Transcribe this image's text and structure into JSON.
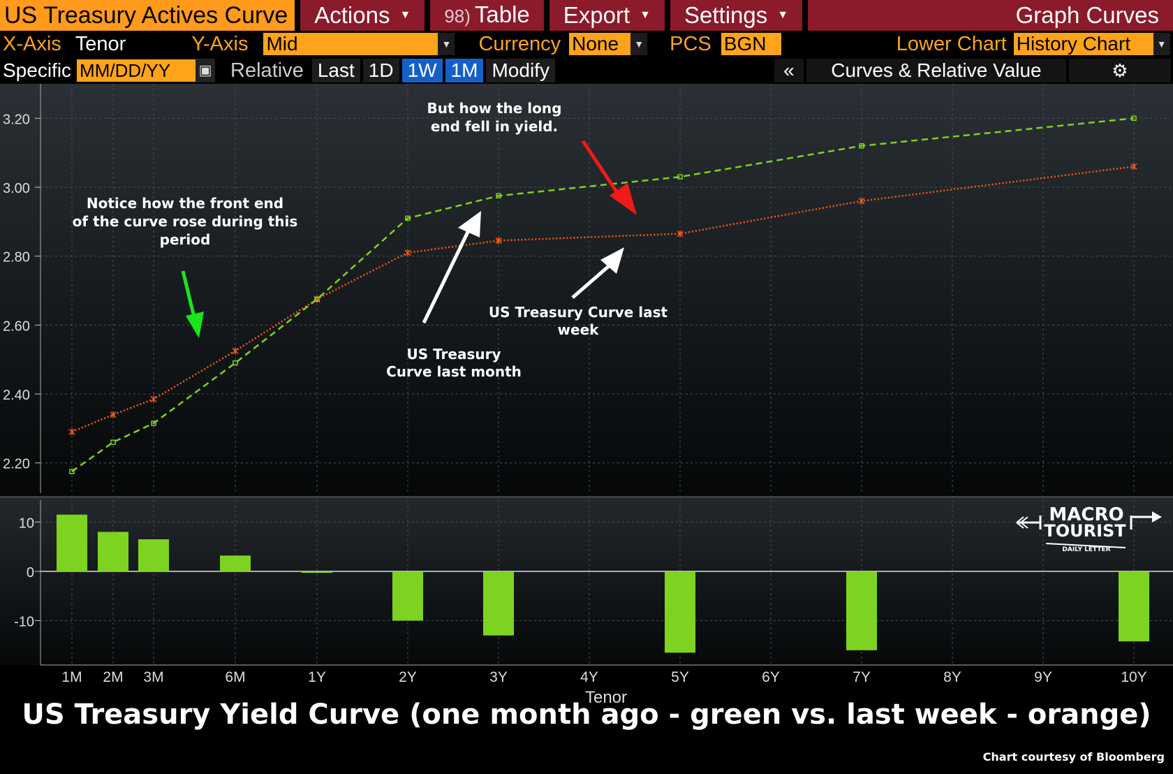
{
  "toolbar": {
    "title": "US Treasury Actives Curve",
    "actions": "Actions",
    "table_num": "98)",
    "table": "Table",
    "export": "Export",
    "settings": "Settings",
    "graph_curves": "Graph Curves"
  },
  "params": {
    "xaxis_label": "X-Axis",
    "xaxis_value": "Tenor",
    "yaxis_label": "Y-Axis",
    "yaxis_value": "Mid",
    "currency_label": "Currency",
    "currency_value": "None",
    "pcs_label": "PCS",
    "pcs_value": "BGN",
    "lower_label": "Lower Chart",
    "lower_value": "History Chart"
  },
  "dates": {
    "specific": "Specific",
    "date_placeholder": "MM/DD/YY",
    "relative": "Relative",
    "last": "Last",
    "d1": "1D",
    "w1": "1W",
    "m1": "1M",
    "modify": "Modify",
    "collapse": "«",
    "panel": "Curves & Relative Value"
  },
  "colors": {
    "green_series": "#7ed321",
    "orange_series": "#ff5a1a",
    "bars": "#7ed321"
  },
  "icons": [
    "dropdown-caret-icon",
    "calendar-icon",
    "gear-icon",
    "chevron-left-icon"
  ],
  "chart_data": [
    {
      "type": "line",
      "xlabel": "Tenor",
      "x_ticks": [
        "1M",
        "2M",
        "3M",
        "6M",
        "1Y",
        "2Y",
        "3Y",
        "4Y",
        "5Y",
        "6Y",
        "7Y",
        "8Y",
        "9Y",
        "10Y"
      ],
      "x_years": [
        0.0833,
        0.1667,
        0.25,
        0.5,
        1,
        2,
        3,
        4,
        5,
        6,
        7,
        8,
        9,
        10
      ],
      "ylim": [
        2.1,
        3.3
      ],
      "y_ticks": [
        "2.20",
        "2.40",
        "2.60",
        "2.80",
        "3.00",
        "3.20"
      ],
      "grid": true,
      "series": [
        {
          "x_years": [
            0.0833,
            0.1667,
            0.25,
            0.5,
            1,
            2,
            3,
            5,
            7,
            10
          ],
          "values": [
            2.29,
            2.34,
            2.385,
            2.525,
            2.675,
            2.81,
            2.845,
            2.865,
            2.96,
            3.06
          ]
        },
        {
          "x_years": [
            0.0833,
            0.1667,
            0.25,
            0.5,
            1,
            2,
            3,
            5,
            7,
            10
          ],
          "values": [
            2.175,
            2.26,
            2.315,
            2.49,
            2.675,
            2.91,
            2.975,
            3.03,
            3.12,
            3.2
          ]
        }
      ],
      "annotations": [
        "Notice how the front end of the curve rose during this period",
        "But how the long end fell in yield.",
        "US Treasury Curve last month",
        "US Treasury Curve last week"
      ]
    },
    {
      "type": "bar",
      "x_years": [
        0.0833,
        0.1667,
        0.25,
        0.5,
        1,
        2,
        3,
        5,
        7,
        10
      ],
      "values": [
        11.5,
        8,
        6.5,
        3.2,
        -0.3,
        -10,
        -13,
        -16.5,
        -16,
        -14.2
      ],
      "ylim": [
        -19,
        15
      ],
      "y_ticks": [
        "10",
        "0",
        "-10"
      ]
    }
  ],
  "caption": "US Treasury Yield Curve (one month ago - green vs. last week - orange)",
  "credit": "Chart courtesy of Bloomberg",
  "logo": {
    "line1": "MACRO",
    "line2": "TOURIST",
    "line3": "DAILY LETTER"
  }
}
